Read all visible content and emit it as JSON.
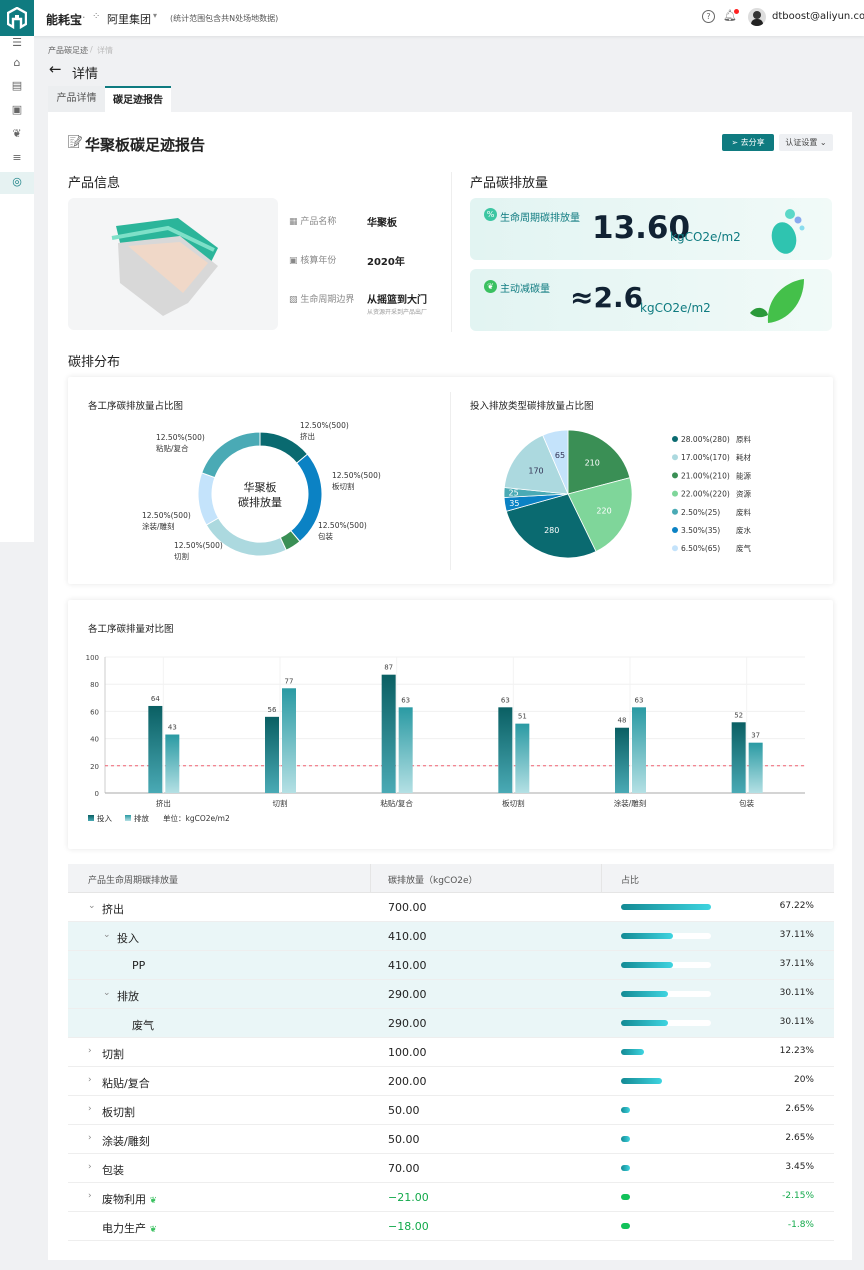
{
  "header": {
    "app": "能耗宝",
    "org": "阿里集团",
    "scope": "(统计范围包含共N处场地数据)",
    "user": "dtboost@aliyun.com"
  },
  "breadcrumb": {
    "parent": "产品碳足迹",
    "current": "详情"
  },
  "page_title": "详情",
  "tabs": [
    {
      "label": "产品详情"
    },
    {
      "label": "碳足迹报告"
    }
  ],
  "report": {
    "title": "华聚板碳足迹报告",
    "share": "去分享",
    "cert": "认证设置"
  },
  "product_info": {
    "section": "产品信息",
    "fields": [
      {
        "label": "产品名称",
        "value": "华聚板"
      },
      {
        "label": "核算年份",
        "value": "2020年"
      },
      {
        "label": "生命周期边界",
        "value": "从摇篮到大门",
        "note": "从资源开采到产品出厂"
      }
    ]
  },
  "emission": {
    "section": "产品碳排放量",
    "lifecycle": {
      "label": "生命周期碳排放量",
      "value": "13.60",
      "unit": "kgCO2e/m2"
    },
    "reduction": {
      "label": "主动减碳量",
      "value": "≈2.6",
      "unit": "kgCO2e/m2"
    }
  },
  "dist_section": "碳排分布",
  "chart_data": [
    {
      "type": "pie",
      "title": "各工序碳排放量占比图",
      "center": "华聚板\n碳排放量",
      "center1": "华聚板",
      "center2": "碳排放量",
      "slices": [
        {
          "name": "挤出",
          "label": "12.50%(500)",
          "color": "#0a6a70"
        },
        {
          "name": "板切割",
          "label": "12.50%(500)",
          "color": "#0b82c4"
        },
        {
          "name": "包装",
          "label": "12.50%(500)",
          "color": "#3a8f55"
        },
        {
          "name": "切割",
          "label": "12.50%(500)",
          "color": "#acd9df"
        },
        {
          "name": "涂装/雕刻",
          "label": "12.50%(500)",
          "color": "#c4e3fb"
        },
        {
          "name": "粘贴/复合",
          "label": "12.50%(500)",
          "color": "#4aaab5"
        }
      ]
    },
    {
      "type": "pie",
      "title": "投入排放类型碳排放量占比图",
      "slices": [
        {
          "name": "能源",
          "value": 210,
          "label": "21.00%(210)",
          "color": "#3a8f55"
        },
        {
          "name": "资源",
          "value": 220,
          "label": "22.00%(220)",
          "color": "#7fd69a"
        },
        {
          "name": "原料",
          "value": 280,
          "label": "28.00%(280)",
          "color": "#0a6a70"
        },
        {
          "name": "废水",
          "value": 35,
          "label": "3.50%(35)",
          "color": "#0b82c4"
        },
        {
          "name": "废料",
          "value": 25,
          "label": "2.50%(25)",
          "color": "#4aaab5"
        },
        {
          "name": "耗材",
          "value": 170,
          "label": "17.00%(170)",
          "color": "#acd9df"
        },
        {
          "name": "废气",
          "value": 65,
          "label": "6.50%(65)",
          "color": "#c4e3fb"
        }
      ],
      "legend_order": [
        "原料",
        "耗材",
        "能源",
        "资源",
        "废料",
        "废水",
        "废气"
      ],
      "legend": "right"
    },
    {
      "type": "bar",
      "title": "各工序碳排量对比图",
      "categories": [
        "挤出",
        "切割",
        "粘贴/复合",
        "板切割",
        "涂装/雕刻",
        "包装"
      ],
      "series": [
        {
          "name": "投入",
          "values": [
            64,
            56,
            87,
            63,
            48,
            52
          ],
          "color": "#0a5f63"
        },
        {
          "name": "排放",
          "values": [
            43,
            77,
            63,
            51,
            63,
            37
          ],
          "color": "#2a9aa3"
        }
      ],
      "ylim": [
        0,
        100
      ],
      "yticks": [
        0,
        20,
        40,
        60,
        80,
        100
      ],
      "threshold": 20,
      "threshold_color": "#f06070",
      "unit": "单位：kgCO2e/m2"
    }
  ],
  "table": {
    "headers": [
      "产品生命周期碳排放量",
      "碳排放量（kgCO2e）",
      "占比"
    ],
    "rows": [
      {
        "name": "挤出",
        "value": "700.00",
        "pct": "67.22%",
        "frac": 1.0,
        "level": 0,
        "toggle": "open"
      },
      {
        "name": "投入",
        "value": "410.00",
        "pct": "37.11%",
        "frac": 0.58,
        "level": 1,
        "toggle": "open"
      },
      {
        "name": "PP",
        "value": "410.00",
        "pct": "37.11%",
        "frac": 0.58,
        "level": 2,
        "toggle": ""
      },
      {
        "name": "排放",
        "value": "290.00",
        "pct": "30.11%",
        "frac": 0.52,
        "level": 1,
        "toggle": "open"
      },
      {
        "name": "废气",
        "value": "290.00",
        "pct": "30.11%",
        "frac": 0.52,
        "level": 2,
        "toggle": ""
      },
      {
        "name": "切割",
        "value": "100.00",
        "pct": "12.23%",
        "frac": 0.26,
        "level": 0,
        "toggle": "closed"
      },
      {
        "name": "粘贴/复合",
        "value": "200.00",
        "pct": "20%",
        "frac": 0.46,
        "level": 0,
        "toggle": "closed"
      },
      {
        "name": "板切割",
        "value": "50.00",
        "pct": "2.65%",
        "frac": 0.1,
        "level": 0,
        "toggle": "closed"
      },
      {
        "name": "涂装/雕刻",
        "value": "50.00",
        "pct": "2.65%",
        "frac": 0.1,
        "level": 0,
        "toggle": "closed"
      },
      {
        "name": "包装",
        "value": "70.00",
        "pct": "3.45%",
        "frac": 0.1,
        "level": 0,
        "toggle": "closed"
      },
      {
        "name": "废物利用",
        "value": "−21.00",
        "pct": "-2.15%",
        "frac": 0.1,
        "level": 0,
        "toggle": "closed",
        "green": true
      },
      {
        "name": "电力生产",
        "value": "−18.00",
        "pct": "-1.8%",
        "frac": 0.1,
        "level": 0,
        "toggle": "",
        "green": true
      }
    ]
  }
}
